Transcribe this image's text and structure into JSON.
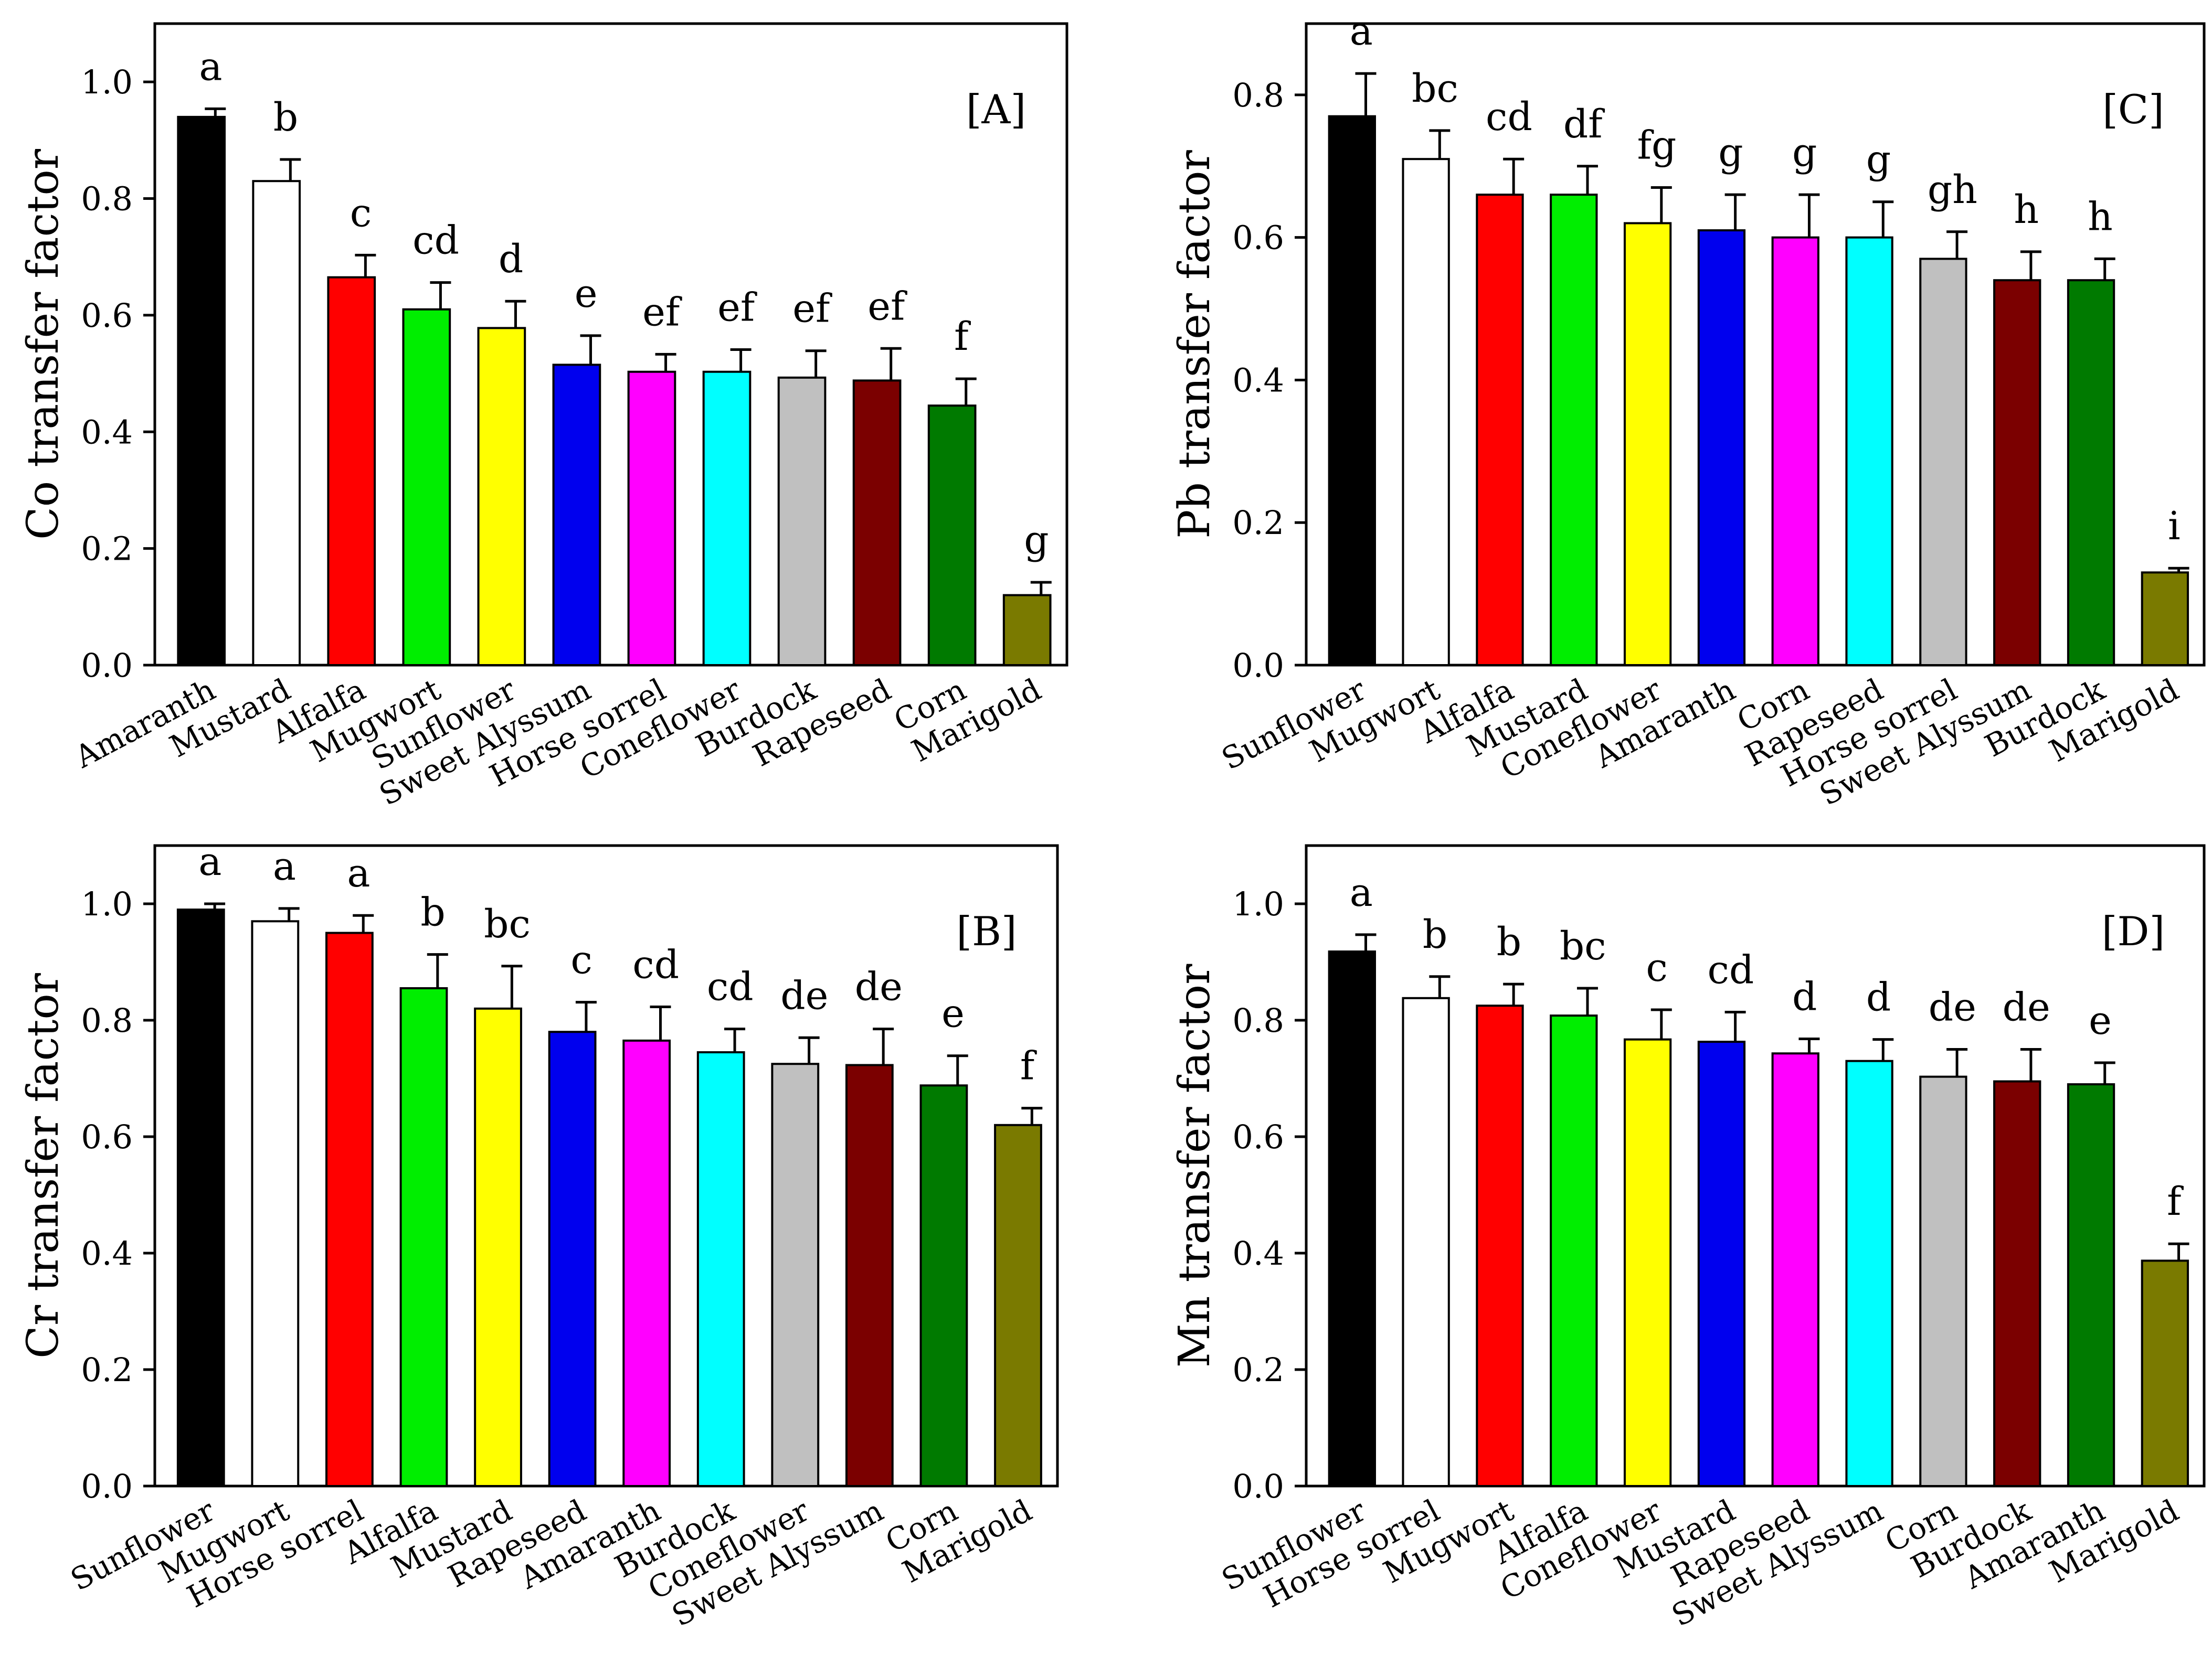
{
  "colors": {
    "black": "#000000",
    "white": "#ffffff",
    "red": "#ff0000",
    "green": "#00ee00",
    "yellow": "#ffff00",
    "blue": "#0000ee",
    "magenta": "#ff00ff",
    "cyan": "#00ffff",
    "gray": "#c0c0c0",
    "maroon": "#7b0000",
    "darkgreen": "#007a00",
    "olive": "#7a7a00"
  },
  "chart_data": [
    {
      "id": "A",
      "type": "bar",
      "panel_label": "[A]",
      "ylabel": "Co transfer factor",
      "ylim": [
        0,
        1.1
      ],
      "yticks": [
        "0.0",
        "0.2",
        "0.4",
        "0.6",
        "0.8",
        "1.0"
      ],
      "categories": [
        "Amaranth",
        "Mustard",
        "Alfalfa",
        "Mugwort",
        "Sunflower",
        "Sweet Alyssum",
        "Horse sorrel",
        "Coneflower",
        "Burdock",
        "Rapeseed",
        "Corn",
        "Marigold"
      ],
      "values": [
        0.94,
        0.83,
        0.665,
        0.61,
        0.578,
        0.515,
        0.503,
        0.503,
        0.493,
        0.488,
        0.445,
        0.12
      ],
      "errors": [
        0.014,
        0.037,
        0.038,
        0.046,
        0.046,
        0.05,
        0.03,
        0.038,
        0.046,
        0.055,
        0.046,
        0.022
      ],
      "letters": [
        "a",
        "b",
        "c",
        "cd",
        "d",
        "e",
        "ef",
        "ef",
        "ef",
        "ef",
        "f",
        "g"
      ],
      "bar_colors": [
        "black",
        "white",
        "red",
        "green",
        "yellow",
        "blue",
        "magenta",
        "cyan",
        "gray",
        "maroon",
        "darkgreen",
        "olive"
      ]
    },
    {
      "id": "C",
      "type": "bar",
      "panel_label": "[C]",
      "ylabel": "Pb transfer factor",
      "ylim": [
        0,
        0.9
      ],
      "yticks": [
        "0.0",
        "0.2",
        "0.4",
        "0.6",
        "0.8"
      ],
      "categories": [
        "Sunflower",
        "Mugwort",
        "Alfalfa",
        "Mustard",
        "Coneflower",
        "Amaranth",
        "Corn",
        "Rapeseed",
        "Horse sorrel",
        "Sweet Alyssum",
        "Burdock",
        "Marigold"
      ],
      "values": [
        0.77,
        0.71,
        0.66,
        0.66,
        0.62,
        0.61,
        0.6,
        0.6,
        0.57,
        0.54,
        0.54,
        0.13
      ],
      "errors": [
        0.06,
        0.04,
        0.05,
        0.04,
        0.05,
        0.05,
        0.06,
        0.05,
        0.038,
        0.04,
        0.03,
        0.006
      ],
      "letters": [
        "a",
        "bc",
        "cd",
        "df",
        "fg",
        "g",
        "g",
        "g",
        "gh",
        "h",
        "h",
        "i"
      ],
      "bar_colors": [
        "black",
        "white",
        "red",
        "green",
        "yellow",
        "blue",
        "magenta",
        "cyan",
        "gray",
        "maroon",
        "darkgreen",
        "olive"
      ]
    },
    {
      "id": "B",
      "type": "bar",
      "panel_label": "[B]",
      "ylabel": "Cr transfer factor",
      "ylim": [
        0,
        1.1
      ],
      "yticks": [
        "0.0",
        "0.2",
        "0.4",
        "0.6",
        "0.8",
        "1.0"
      ],
      "categories": [
        "Sunflower",
        "Mugwort",
        "Horse sorrel",
        "Alfalfa",
        "Mustard",
        "Rapeseed",
        "Amaranth",
        "Burdock",
        "Coneflower",
        "Sweet Alyssum",
        "Corn",
        "Marigold"
      ],
      "values": [
        0.99,
        0.97,
        0.95,
        0.855,
        0.82,
        0.78,
        0.765,
        0.745,
        0.725,
        0.723,
        0.688,
        0.62
      ],
      "errors": [
        0.01,
        0.022,
        0.03,
        0.058,
        0.073,
        0.051,
        0.058,
        0.04,
        0.045,
        0.062,
        0.051,
        0.029
      ],
      "letters": [
        "a",
        "a",
        "a",
        "b",
        "bc",
        "c",
        "cd",
        "cd",
        "de",
        "de",
        "e",
        "f"
      ],
      "bar_colors": [
        "black",
        "white",
        "red",
        "green",
        "yellow",
        "blue",
        "magenta",
        "cyan",
        "gray",
        "maroon",
        "darkgreen",
        "olive"
      ]
    },
    {
      "id": "D",
      "type": "bar",
      "panel_label": "[D]",
      "ylabel": "Mn transfer factor",
      "ylim": [
        0,
        1.1
      ],
      "yticks": [
        "0.0",
        "0.2",
        "0.4",
        "0.6",
        "0.8",
        "1.0"
      ],
      "categories": [
        "Sunflower",
        "Horse sorrel",
        "Mugwort",
        "Alfalfa",
        "Coneflower",
        "Mustard",
        "Rapeseed",
        "Sweet Alyssum",
        "Corn",
        "Burdock",
        "Amaranth",
        "Marigold"
      ],
      "values": [
        0.918,
        0.838,
        0.825,
        0.808,
        0.767,
        0.763,
        0.743,
        0.73,
        0.703,
        0.695,
        0.69,
        0.387
      ],
      "errors": [
        0.029,
        0.037,
        0.037,
        0.047,
        0.051,
        0.051,
        0.025,
        0.037,
        0.047,
        0.055,
        0.037,
        0.029
      ],
      "letters": [
        "a",
        "b",
        "b",
        "bc",
        "c",
        "cd",
        "d",
        "d",
        "de",
        "de",
        "e",
        "f"
      ],
      "bar_colors": [
        "black",
        "white",
        "red",
        "green",
        "yellow",
        "blue",
        "magenta",
        "cyan",
        "gray",
        "maroon",
        "darkgreen",
        "olive"
      ]
    }
  ]
}
